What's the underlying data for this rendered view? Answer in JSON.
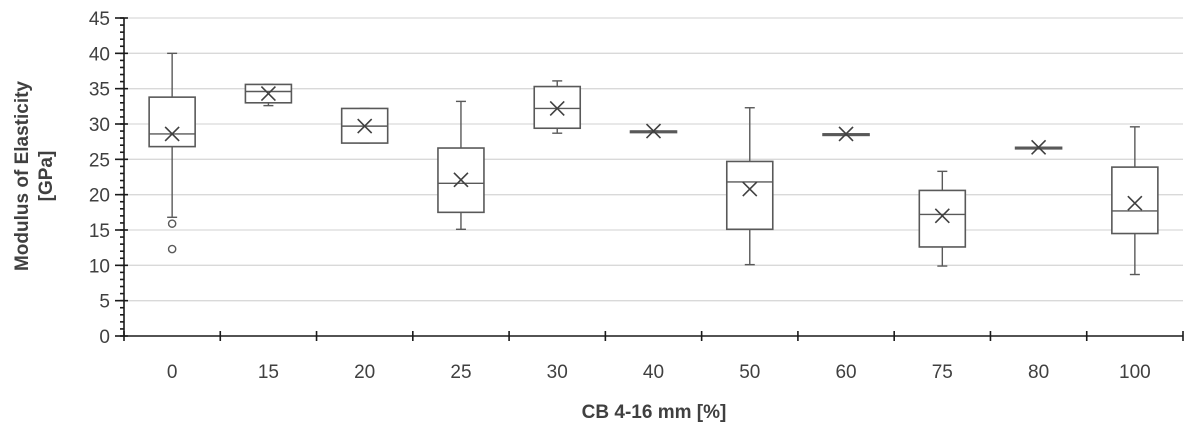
{
  "chart_data": {
    "type": "boxplot",
    "title": "",
    "xlabel": "CB 4-16 mm [%]",
    "ylabel_line1": "Modulus of Elasticity",
    "ylabel_line2": "[GPa]",
    "ylim": [
      0,
      45
    ],
    "y_major_ticks": [
      0,
      5,
      10,
      15,
      20,
      25,
      30,
      35,
      40,
      45
    ],
    "y_minor_step": 1,
    "grid": "horizontal major",
    "legend": "none",
    "categories": [
      "0",
      "15",
      "20",
      "25",
      "30",
      "40",
      "50",
      "60",
      "75",
      "80",
      "100"
    ],
    "boxes": [
      {
        "category": "0",
        "whisker_low": 16.8,
        "q1": 26.8,
        "median": 28.6,
        "q3": 33.8,
        "whisker_high": 40.0,
        "mean": 28.6,
        "outliers": [
          15.9,
          12.3
        ]
      },
      {
        "category": "15",
        "whisker_low": 32.6,
        "q1": 33.0,
        "median": 34.6,
        "q3": 35.6,
        "whisker_high": 35.6,
        "mean": 34.3,
        "outliers": []
      },
      {
        "category": "20",
        "whisker_low": 27.3,
        "q1": 27.3,
        "median": 29.7,
        "q3": 32.2,
        "whisker_high": 32.2,
        "mean": 29.7,
        "outliers": []
      },
      {
        "category": "25",
        "whisker_low": 15.1,
        "q1": 17.5,
        "median": 21.6,
        "q3": 26.6,
        "whisker_high": 33.2,
        "mean": 22.1,
        "outliers": []
      },
      {
        "category": "30",
        "whisker_low": 28.7,
        "q1": 29.4,
        "median": 32.2,
        "q3": 35.3,
        "whisker_high": 36.1,
        "mean": 32.2,
        "outliers": []
      },
      {
        "category": "40",
        "whisker_low": 29.0,
        "q1": 29.0,
        "median": 29.0,
        "q3": 29.0,
        "whisker_high": 29.0,
        "mean": 29.0,
        "outliers": []
      },
      {
        "category": "50",
        "whisker_low": 10.1,
        "q1": 15.1,
        "median": 21.8,
        "q3": 24.7,
        "whisker_high": 32.3,
        "mean": 20.8,
        "outliers": []
      },
      {
        "category": "60",
        "whisker_low": 28.6,
        "q1": 28.6,
        "median": 28.6,
        "q3": 28.6,
        "whisker_high": 28.6,
        "mean": 28.6,
        "outliers": []
      },
      {
        "category": "75",
        "whisker_low": 9.9,
        "q1": 12.6,
        "median": 17.2,
        "q3": 20.6,
        "whisker_high": 23.3,
        "mean": 17.0,
        "outliers": []
      },
      {
        "category": "80",
        "whisker_low": 26.7,
        "q1": 26.7,
        "median": 26.7,
        "q3": 26.7,
        "whisker_high": 26.7,
        "mean": 26.7,
        "outliers": []
      },
      {
        "category": "100",
        "whisker_low": 8.7,
        "q1": 14.5,
        "median": 17.7,
        "q3": 23.9,
        "whisker_high": 29.6,
        "mean": 18.8,
        "outliers": []
      }
    ]
  }
}
